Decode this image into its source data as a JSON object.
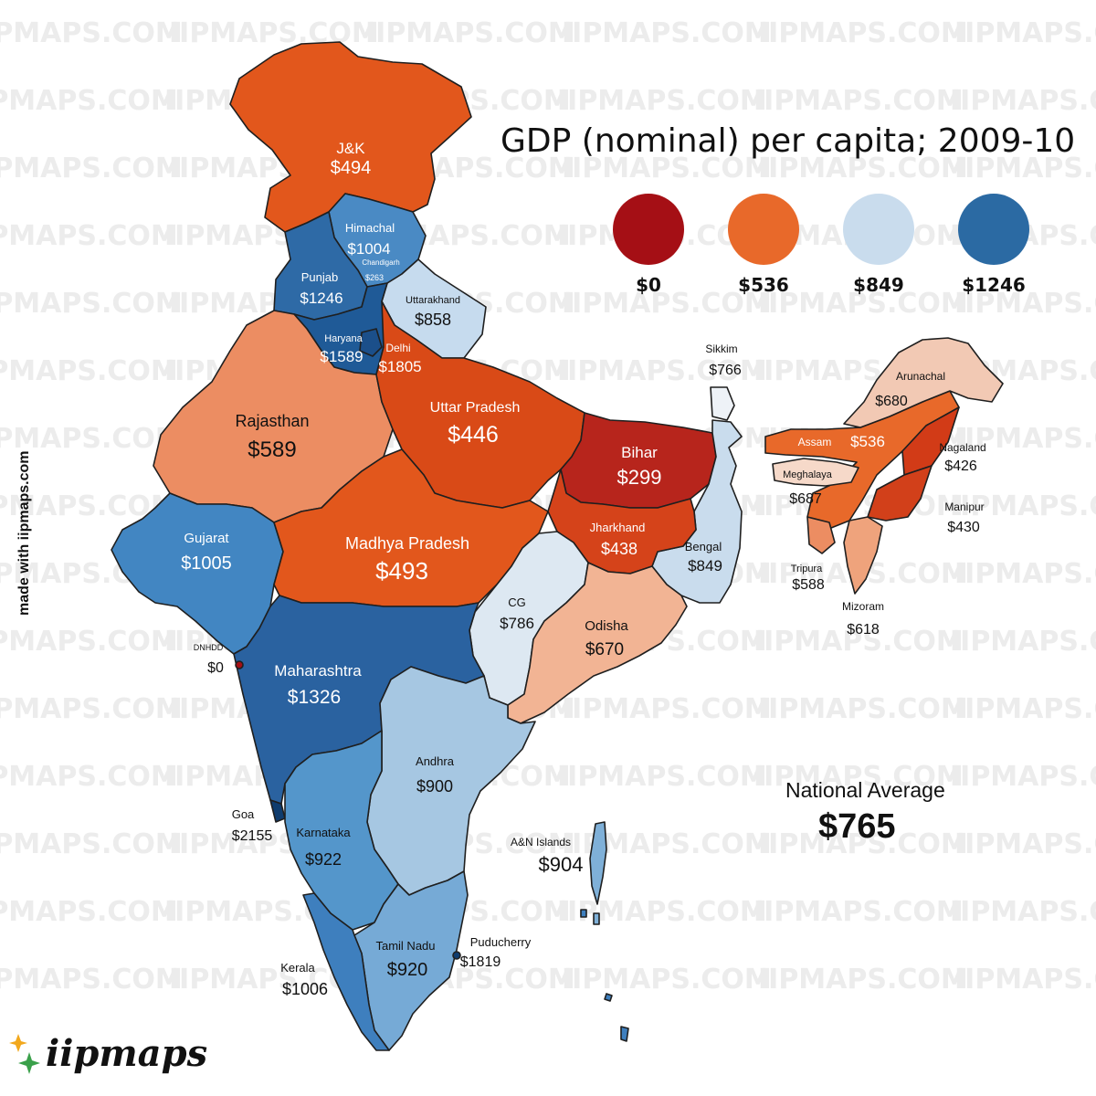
{
  "title": "GDP (nominal) per capita; 2009-10",
  "legend": [
    {
      "label": "$0",
      "color": "#a50f15"
    },
    {
      "label": "$536",
      "color": "#e8692a"
    },
    {
      "label": "$849",
      "color": "#c9dced"
    },
    {
      "label": "$1246",
      "color": "#2b6aa3"
    }
  ],
  "national_average": {
    "label": "National Average",
    "value": "$765"
  },
  "watermark": "IIPMAPS.COM",
  "credit": "made with iipmaps.com",
  "logo": "iipmaps",
  "regions": {
    "jk": {
      "name": "J&K",
      "value": "$494",
      "color": "#e2571c"
    },
    "himachal": {
      "name": "Himachal",
      "value": "$1004",
      "color": "#4a8ac4"
    },
    "chandigarh": {
      "name": "Chandigarh",
      "value": "$263"
    },
    "punjab": {
      "name": "Punjab",
      "value": "$1246",
      "color": "#2e6aa6"
    },
    "uttarakhand": {
      "name": "Uttarakhand",
      "value": "$858",
      "color": "#c6dbee"
    },
    "haryana": {
      "name": "Haryana",
      "value": "$1589",
      "color": "#1f5a97"
    },
    "delhi": {
      "name": "Delhi",
      "value": "$1805",
      "color": "#1b4f8a"
    },
    "rajasthan": {
      "name": "Rajasthan",
      "value": "$589",
      "color": "#ec8d62"
    },
    "up": {
      "name": "Uttar Pradesh",
      "value": "$446",
      "color": "#d94a17"
    },
    "bihar": {
      "name": "Bihar",
      "value": "$299",
      "color": "#b7251c"
    },
    "sikkim": {
      "name": "Sikkim",
      "value": "$766",
      "color": "#eef2f7"
    },
    "arunachal": {
      "name": "Arunachal",
      "value": "$680",
      "color": "#f2c9b4"
    },
    "assam": {
      "name": "Assam",
      "value": "$536",
      "color": "#e8692a"
    },
    "nagaland": {
      "name": "Nagaland",
      "value": "$426",
      "color": "#d23b17"
    },
    "meghalaya": {
      "name": "Meghalaya",
      "value": "$687",
      "color": "#f6d9c9"
    },
    "manipur": {
      "name": "Manipur",
      "value": "$430",
      "color": "#d2401a"
    },
    "tripura": {
      "name": "Tripura",
      "value": "$588",
      "color": "#ec8d62"
    },
    "mizoram": {
      "name": "Mizoram",
      "value": "$618",
      "color": "#efa37c"
    },
    "gujarat": {
      "name": "Gujarat",
      "value": "$1005",
      "color": "#4286c2"
    },
    "mp": {
      "name": "Madhya Pradesh",
      "value": "$493",
      "color": "#e2571c"
    },
    "jharkhand": {
      "name": "Jharkhand",
      "value": "$438",
      "color": "#d5431a"
    },
    "bengal": {
      "name": "Bengal",
      "value": "$849",
      "color": "#c9dced"
    },
    "cg": {
      "name": "CG",
      "value": "$786",
      "color": "#dde8f2"
    },
    "odisha": {
      "name": "Odisha",
      "value": "$670",
      "color": "#f2b494"
    },
    "dnhdd": {
      "name": "DNHDD",
      "value": "$0"
    },
    "maharashtra": {
      "name": "Maharashtra",
      "value": "$1326",
      "color": "#2a62a0"
    },
    "andhra": {
      "name": "Andhra",
      "value": "$900",
      "color": "#a6c7e2"
    },
    "goa": {
      "name": "Goa",
      "value": "$2155",
      "color": "#0f3c6e"
    },
    "karnataka": {
      "name": "Karnataka",
      "value": "$922",
      "color": "#5496cb"
    },
    "an": {
      "name": "A&N Islands",
      "value": "$904",
      "color": "#7fb0d8"
    },
    "tn": {
      "name": "Tamil Nadu",
      "value": "$920",
      "color": "#76aad6"
    },
    "puducherry": {
      "name": "Puducherry",
      "value": "$1819"
    },
    "kerala": {
      "name": "Kerala",
      "value": "$1006",
      "color": "#3e7fbe"
    }
  }
}
